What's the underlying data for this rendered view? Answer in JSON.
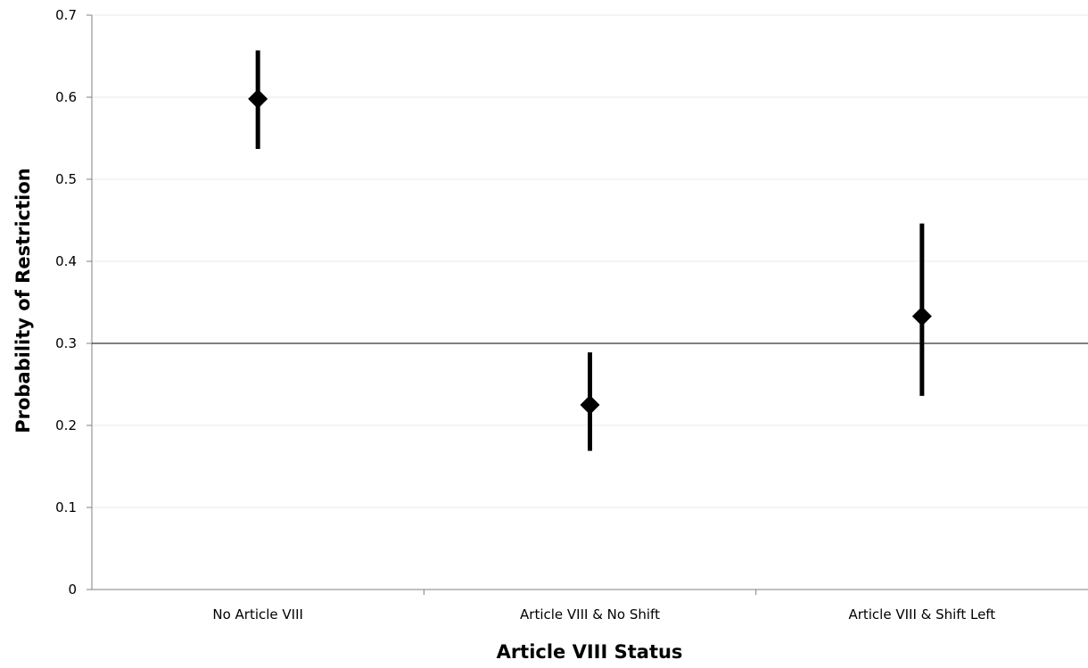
{
  "chart_data": {
    "type": "scatter",
    "title": "",
    "xlabel": "Article VIII Status",
    "ylabel": "Probability of Restriction",
    "categories": [
      "No Article VIII",
      "Article VIII & No Shift",
      "Article VIII & Shift Left"
    ],
    "values": [
      0.598,
      0.225,
      0.333
    ],
    "error_low": [
      0.537,
      0.169,
      0.236
    ],
    "error_high": [
      0.657,
      0.289,
      0.446
    ],
    "ylim": [
      0,
      0.7
    ],
    "yticks": [
      0,
      0.1,
      0.2,
      0.3,
      0.4,
      0.5,
      0.6,
      0.7
    ],
    "ytick_labels": [
      "0",
      "0.1",
      "0.2",
      "0.3",
      "0.4",
      "0.5",
      "0.6",
      "0.7"
    ],
    "reference_line_y": 0.3,
    "grid": true,
    "legend": "none",
    "marker": "diamond",
    "marker_color": "#000000",
    "error_bar_color": "#000000",
    "gridline_color": "#e8e8e8",
    "axis_color": "#808080"
  }
}
